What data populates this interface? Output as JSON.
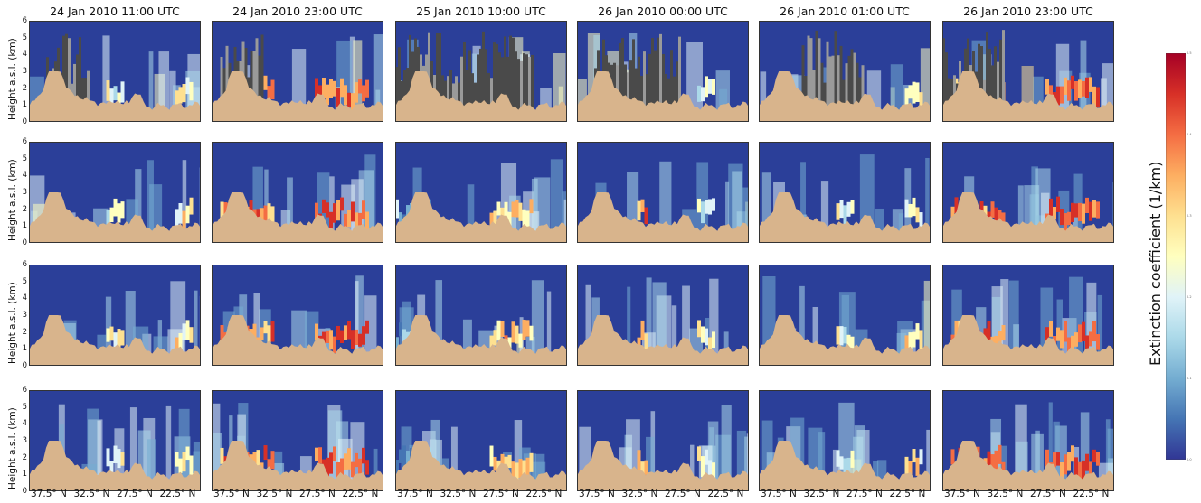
{
  "chart_data": {
    "type": "heatmap",
    "description_rows": 4,
    "columns": [
      {
        "title": "24 Jan 2010 11:00 UTC"
      },
      {
        "title": "24 Jan 2010 23:00 UTC"
      },
      {
        "title": "25 Jan 2010 10:00 UTC"
      },
      {
        "title": "26 Jan 2010 00:00 UTC"
      },
      {
        "title": "26 Jan 2010 01:00 UTC"
      },
      {
        "title": "26 Jan 2010 23:00 UTC"
      }
    ],
    "ylabel": "Height a.s.l. (km)",
    "ylim": [
      0,
      6
    ],
    "yticks": [
      "0",
      "1",
      "2",
      "3",
      "4",
      "5",
      "6"
    ],
    "xticks": [
      "37.5° N",
      "32.5° N",
      "27.5° N",
      "22.5° N"
    ],
    "colorbar": {
      "label": "Extinction coefficient (1/km)",
      "range": [
        0.0,
        0.5
      ],
      "ticks": [
        "0.0",
        "0.1",
        "0.2",
        "0.3",
        "0.4",
        "0.5"
      ],
      "colormap": [
        "#313695",
        "#4575b4",
        "#74add1",
        "#abd9e9",
        "#e0f3f8",
        "#ffffbf",
        "#fee090",
        "#fdae61",
        "#f46d43",
        "#d73027",
        "#a50026"
      ]
    },
    "colors": {
      "background": "#2b3f99",
      "terrain": "#d8b48c",
      "cloud_mask": "#4a4a4a",
      "cloud_mask_light": "#9a9a9a"
    }
  }
}
